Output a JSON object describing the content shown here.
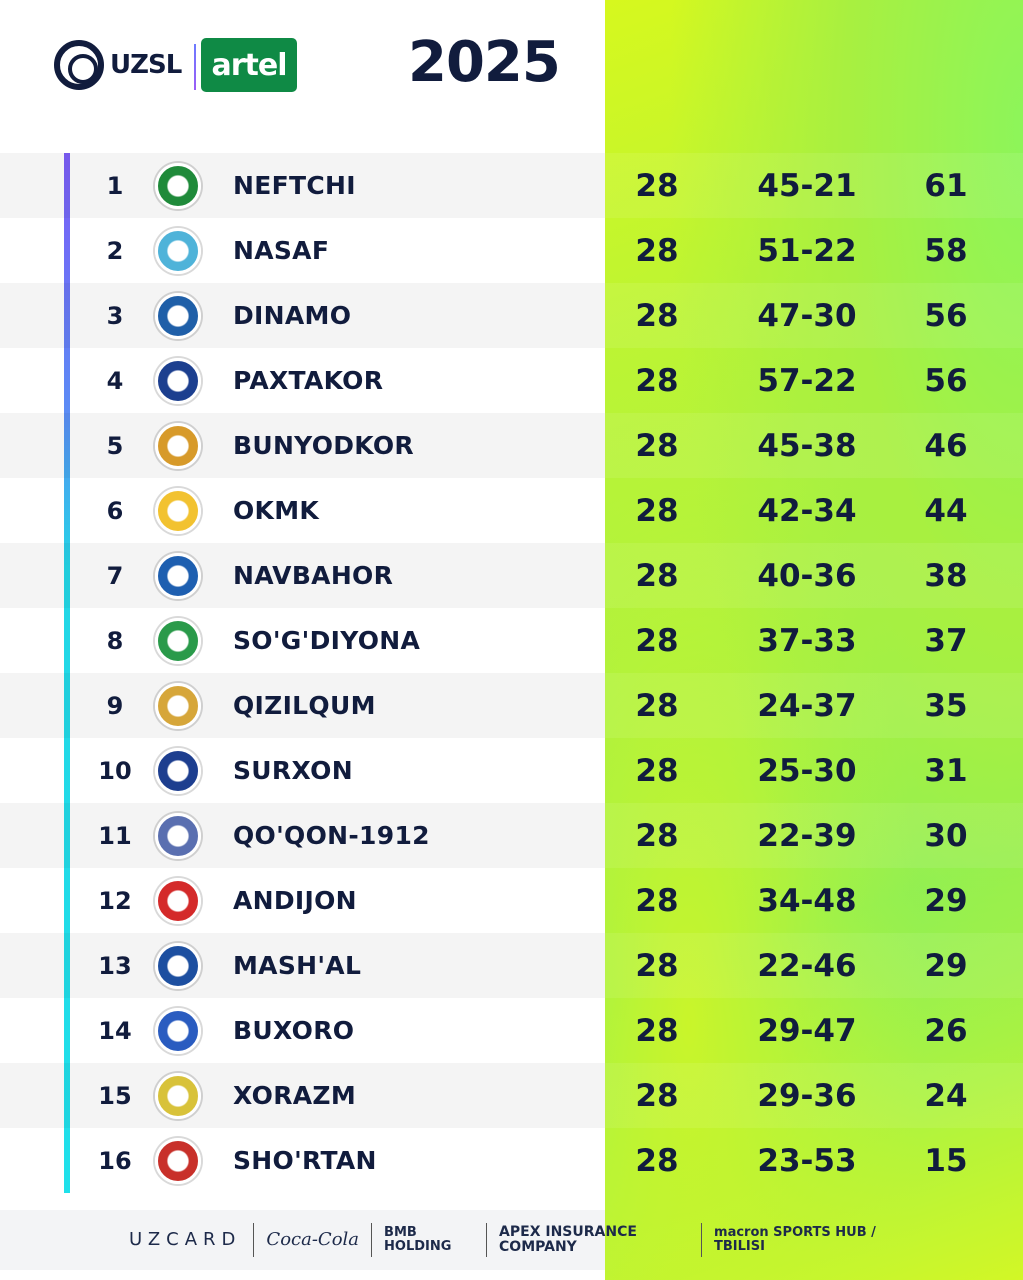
{
  "header": {
    "league": "UZSL",
    "sponsor": "artel",
    "year": "2025"
  },
  "colors": {
    "navy": "#111c3d",
    "artel_green": "#0f8a45",
    "panel_green": "#a6f145"
  },
  "standings": [
    {
      "rank": "1",
      "team": "NEFTCHI",
      "played": "28",
      "goals": "45-21",
      "points": "61",
      "logo_color": "#1f8a3a"
    },
    {
      "rank": "2",
      "team": "NASAF",
      "played": "28",
      "goals": "51-22",
      "points": "58",
      "logo_color": "#4fb3d9"
    },
    {
      "rank": "3",
      "team": "DINAMO",
      "played": "28",
      "goals": "47-30",
      "points": "56",
      "logo_color": "#1f5fa8"
    },
    {
      "rank": "4",
      "team": "PAXTAKOR",
      "played": "28",
      "goals": "57-22",
      "points": "56",
      "logo_color": "#1c3f8f"
    },
    {
      "rank": "5",
      "team": "BUNYODKOR",
      "played": "28",
      "goals": "45-38",
      "points": "46",
      "logo_color": "#d79a2a"
    },
    {
      "rank": "6",
      "team": "OKMK",
      "played": "28",
      "goals": "42-34",
      "points": "44",
      "logo_color": "#f2c230"
    },
    {
      "rank": "7",
      "team": "NAVBAHOR",
      "played": "28",
      "goals": "40-36",
      "points": "38",
      "logo_color": "#1e5fb0"
    },
    {
      "rank": "8",
      "team": "SO'G'DIYONA",
      "played": "28",
      "goals": "37-33",
      "points": "37",
      "logo_color": "#2a9a4a"
    },
    {
      "rank": "9",
      "team": "QIZILQUM",
      "played": "28",
      "goals": "24-37",
      "points": "35",
      "logo_color": "#d6a63a"
    },
    {
      "rank": "10",
      "team": "SURXON",
      "played": "28",
      "goals": "25-30",
      "points": "31",
      "logo_color": "#1d3e8f"
    },
    {
      "rank": "11",
      "team": "QO'QON-1912",
      "played": "28",
      "goals": "22-39",
      "points": "30",
      "logo_color": "#5a6fb0"
    },
    {
      "rank": "12",
      "team": "ANDIJON",
      "played": "28",
      "goals": "34-48",
      "points": "29",
      "logo_color": "#d42a2a"
    },
    {
      "rank": "13",
      "team": "MASH'AL",
      "played": "28",
      "goals": "22-46",
      "points": "29",
      "logo_color": "#1d4fa0"
    },
    {
      "rank": "14",
      "team": "BUXORO",
      "played": "28",
      "goals": "29-47",
      "points": "26",
      "logo_color": "#2a5cc0"
    },
    {
      "rank": "15",
      "team": "XORAZM",
      "played": "28",
      "goals": "29-36",
      "points": "24",
      "logo_color": "#d8c23a"
    },
    {
      "rank": "16",
      "team": "SHO'RTAN",
      "played": "28",
      "goals": "23-53",
      "points": "15",
      "logo_color": "#c8302a"
    }
  ],
  "sponsors": [
    "UZCARD",
    "Coca-Cola",
    "BMB HOLDING",
    "APEX INSURANCE COMPANY",
    "macron SPORTS HUB / TBILISI"
  ]
}
